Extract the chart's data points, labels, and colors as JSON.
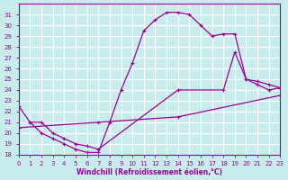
{
  "xlabel": "Windchill (Refroidissement éolien,°C)",
  "bg_color": "#c8ecec",
  "line_color": "#990099",
  "grid_color": "#ffffff",
  "xlim": [
    0,
    23
  ],
  "ylim": [
    18,
    32
  ],
  "yticks": [
    18,
    19,
    20,
    21,
    22,
    23,
    24,
    25,
    26,
    27,
    28,
    29,
    30,
    31
  ],
  "xticks": [
    0,
    1,
    2,
    3,
    4,
    5,
    6,
    7,
    8,
    9,
    10,
    11,
    12,
    13,
    14,
    15,
    16,
    17,
    18,
    19,
    20,
    21,
    22,
    23
  ],
  "line1_x": [
    1,
    2,
    3,
    4,
    5,
    6,
    7,
    8,
    9,
    10,
    11,
    12,
    13,
    14,
    15,
    16,
    17,
    18,
    19,
    20,
    21,
    22,
    23
  ],
  "line1_y": [
    21.0,
    20.0,
    19.5,
    19.0,
    18.5,
    18.2,
    18.2,
    21.0,
    24.0,
    26.5,
    29.5,
    30.5,
    31.2,
    31.2,
    31.0,
    30.0,
    29.0,
    29.2,
    29.2,
    25.0,
    24.8,
    24.5,
    24.2
  ],
  "line2_x": [
    0,
    1,
    2,
    3,
    4,
    5,
    6,
    7,
    14,
    18,
    19,
    20,
    21,
    22,
    23
  ],
  "line2_y": [
    22.5,
    21.0,
    21.0,
    20.0,
    19.5,
    19.0,
    18.8,
    18.5,
    24.0,
    24.0,
    27.5,
    25.0,
    24.5,
    24.0,
    24.2
  ],
  "line3_x": [
    0,
    7,
    14,
    23
  ],
  "line3_y": [
    20.5,
    21.0,
    21.5,
    23.5
  ]
}
